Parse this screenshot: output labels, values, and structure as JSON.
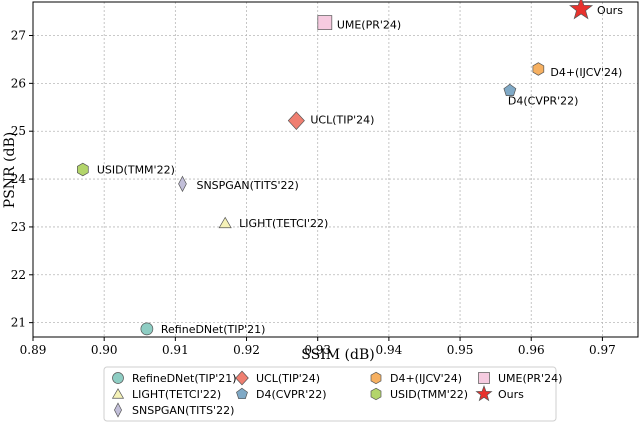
{
  "chart_data": {
    "type": "scatter",
    "xlabel": "SSIM (dB)",
    "ylabel": "PSNR (dB)",
    "xlim": [
      0.89,
      0.975
    ],
    "ylim": [
      20.7,
      27.7
    ],
    "xticks": [
      0.89,
      0.9,
      0.91,
      0.92,
      0.93,
      0.94,
      0.95,
      0.96,
      0.97
    ],
    "xtick_labels": [
      "0.89",
      "0.90",
      "0.91",
      "0.92",
      "0.93",
      "0.94",
      "0.95",
      "0.96",
      "0.97"
    ],
    "yticks": [
      21,
      22,
      23,
      24,
      25,
      26,
      27
    ],
    "ytick_labels": [
      "21",
      "22",
      "23",
      "24",
      "25",
      "26",
      "27"
    ],
    "grid": true,
    "legend_position": "bottom",
    "points": [
      {
        "name": "RefineDNet(TIP'21)",
        "x": 0.906,
        "y": 20.87,
        "marker": "circle",
        "color": "#8ecdc3"
      },
      {
        "name": "LIGHT(TETCI'22)",
        "x": 0.917,
        "y": 23.08,
        "marker": "triangle",
        "color": "#f5f2b8"
      },
      {
        "name": "SNSPGAN(TITS'22)",
        "x": 0.911,
        "y": 23.9,
        "marker": "thin-diamond",
        "color": "#c2bfd9"
      },
      {
        "name": "UCL(TIP'24)",
        "x": 0.927,
        "y": 25.22,
        "marker": "diamond",
        "color": "#ef7f71"
      },
      {
        "name": "D4(CVPR'22)",
        "x": 0.957,
        "y": 25.85,
        "marker": "pentagon",
        "color": "#7fa9c6"
      },
      {
        "name": "D4+(IJCV'24)",
        "x": 0.961,
        "y": 26.3,
        "marker": "hexagon",
        "color": "#f6b061"
      },
      {
        "name": "USID(TMM'22)",
        "x": 0.897,
        "y": 24.2,
        "marker": "hexagon",
        "color": "#b3d56b"
      },
      {
        "name": "UME(PR'24)",
        "x": 0.931,
        "y": 27.27,
        "marker": "square",
        "color": "#f6cbe0"
      },
      {
        "name": "Ours",
        "x": 0.967,
        "y": 27.55,
        "marker": "star",
        "color": "#e8322d"
      }
    ],
    "legend_order": [
      0,
      3,
      5,
      7,
      1,
      4,
      6,
      8,
      2
    ]
  }
}
